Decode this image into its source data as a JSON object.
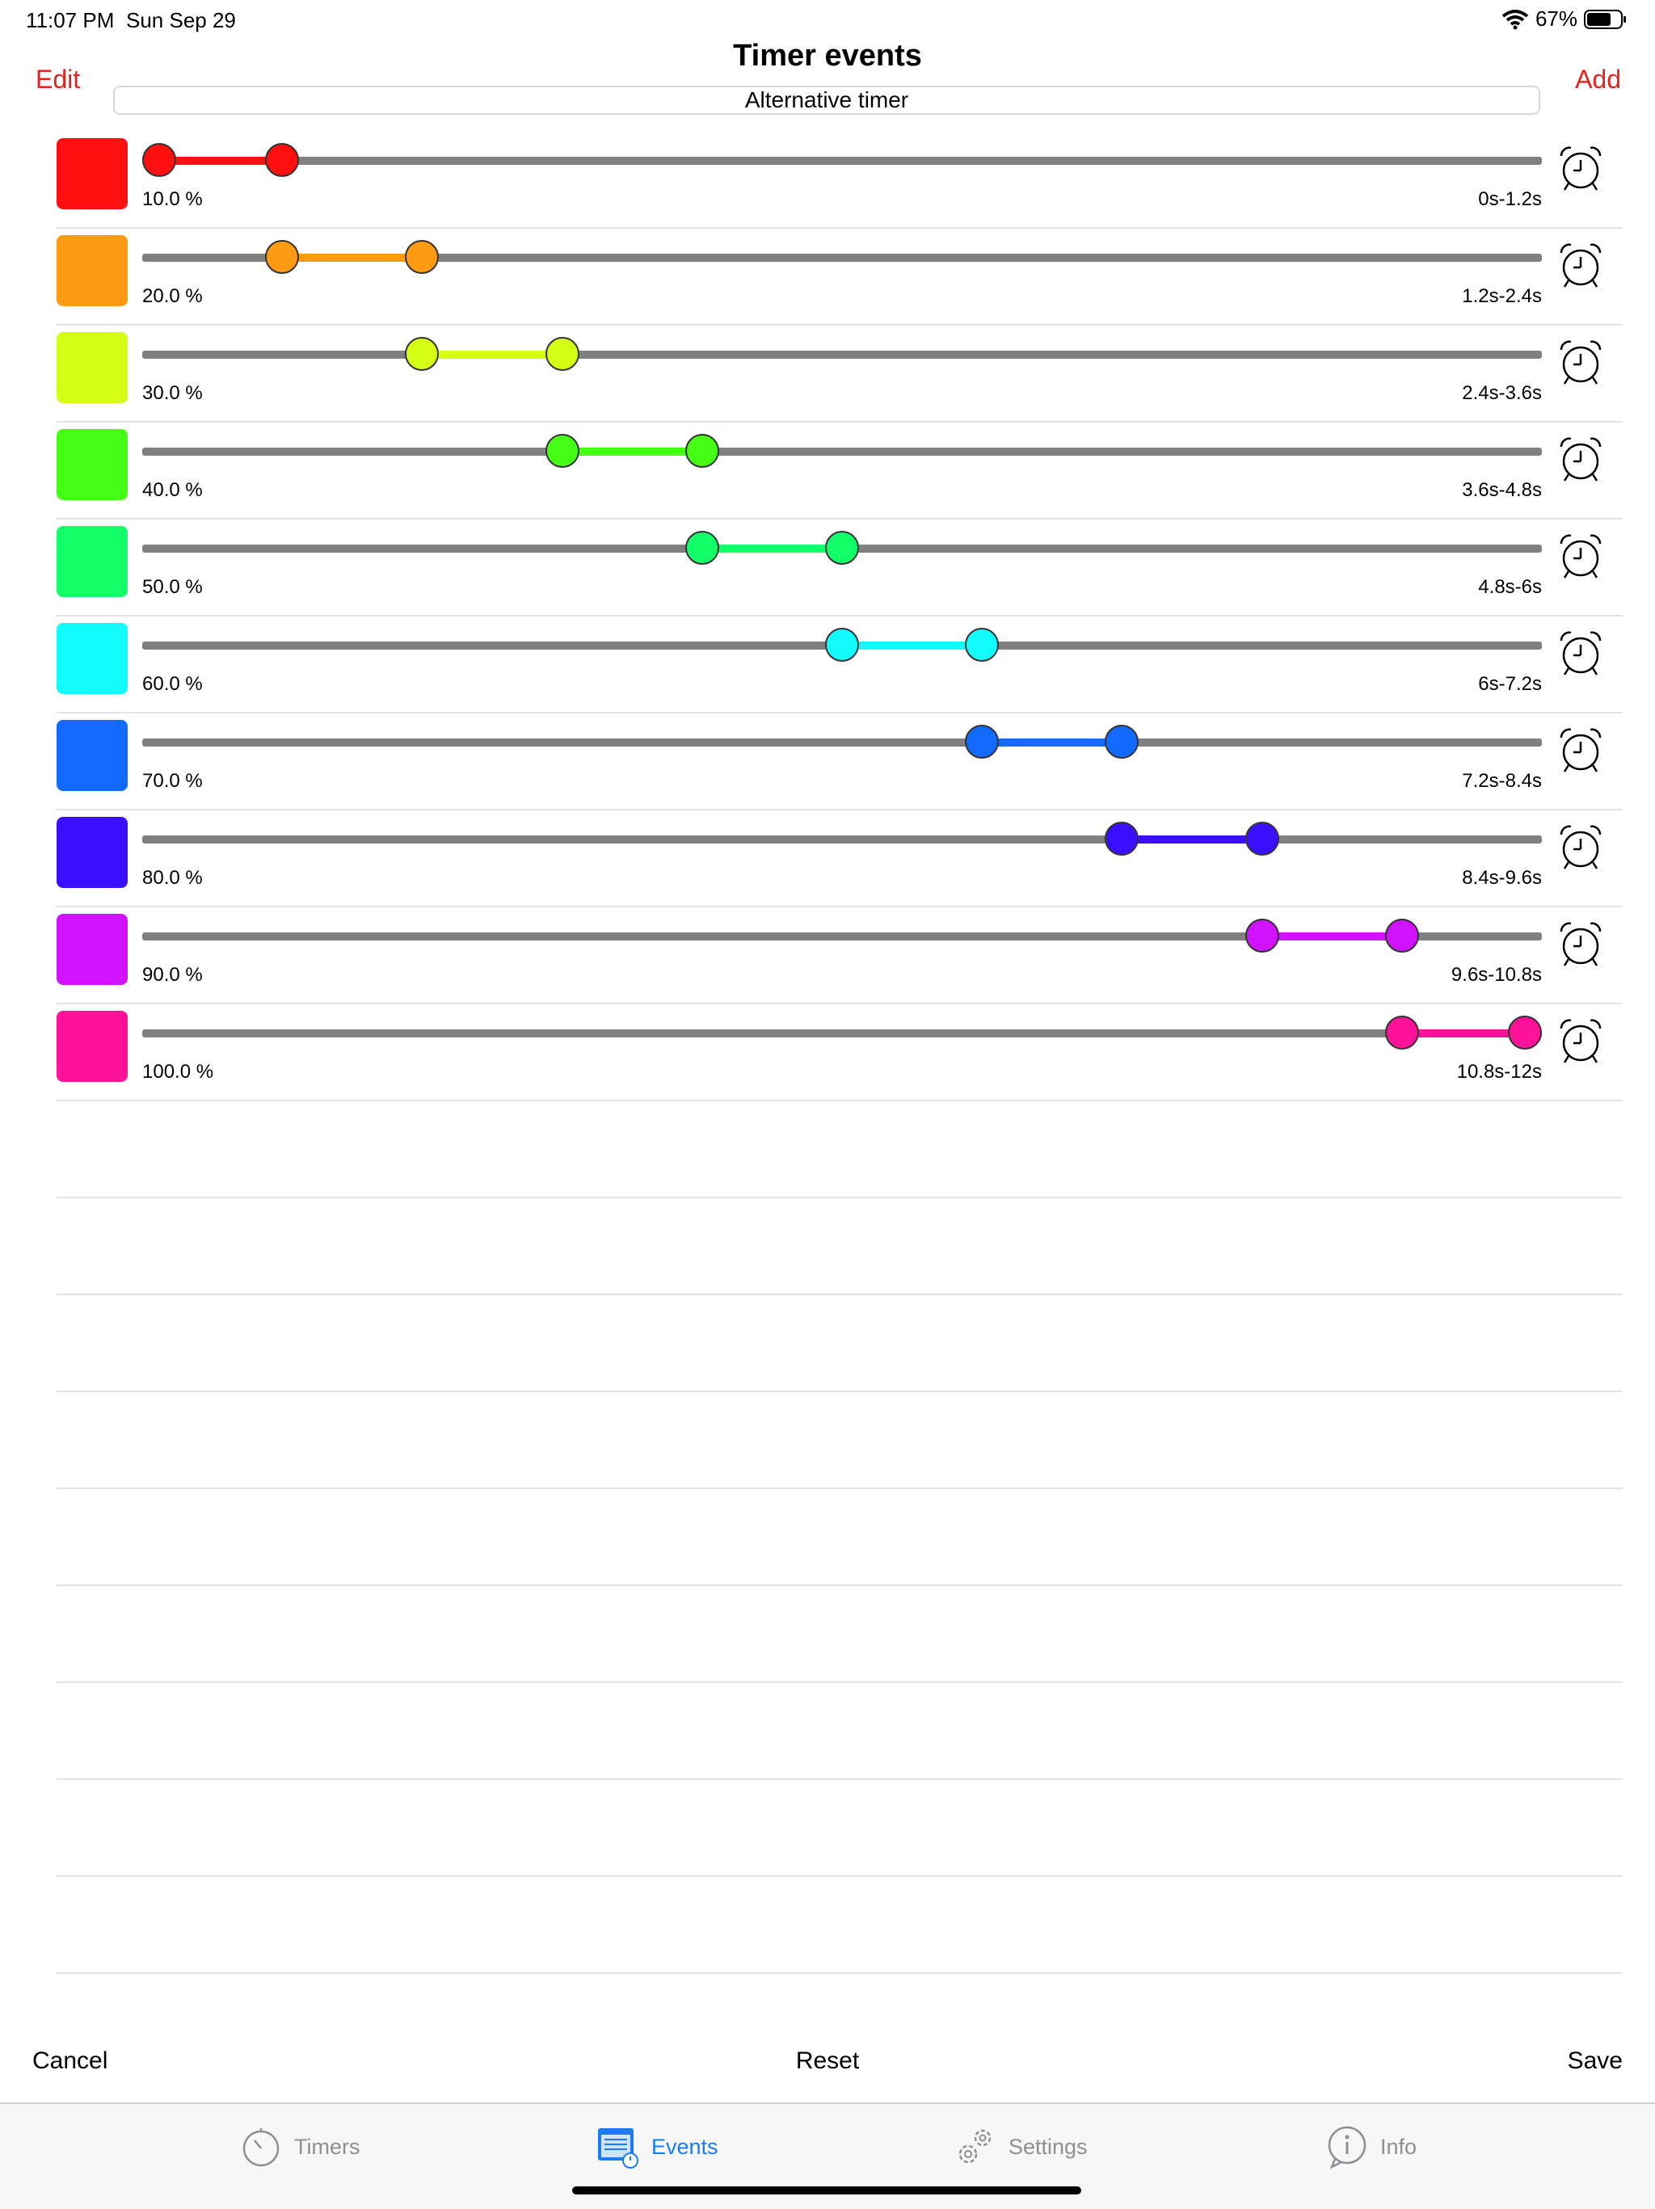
{
  "status_bar": {
    "time": "11:07 PM",
    "date": "Sun Sep 29",
    "battery": "67%"
  },
  "nav": {
    "edit": "Edit",
    "title": "Timer events",
    "add": "Add",
    "subtitle": "Alternative timer"
  },
  "events": [
    {
      "color": "#ff0f0f",
      "percent": "10.0 %",
      "range": "0s-1.2s",
      "start": 0.0,
      "end": 0.1
    },
    {
      "color": "#ff9a12",
      "percent": "20.0 %",
      "range": "1.2s-2.4s",
      "start": 0.1,
      "end": 0.2
    },
    {
      "color": "#d4ff14",
      "percent": "30.0 %",
      "range": "2.4s-3.6s",
      "start": 0.2,
      "end": 0.3
    },
    {
      "color": "#45ff14",
      "percent": "40.0 %",
      "range": "3.6s-4.8s",
      "start": 0.3,
      "end": 0.4
    },
    {
      "color": "#12ff6a",
      "percent": "50.0 %",
      "range": "4.8s-6s",
      "start": 0.4,
      "end": 0.5
    },
    {
      "color": "#12fcff",
      "percent": "60.0 %",
      "range": "6s-7.2s",
      "start": 0.5,
      "end": 0.6
    },
    {
      "color": "#126aff",
      "percent": "70.0 %",
      "range": "7.2s-8.4s",
      "start": 0.6,
      "end": 0.7
    },
    {
      "color": "#3a0fff",
      "percent": "80.0 %",
      "range": "8.4s-9.6s",
      "start": 0.7,
      "end": 0.8
    },
    {
      "color": "#d012ff",
      "percent": "90.0 %",
      "range": "9.6s-10.8s",
      "start": 0.8,
      "end": 0.9
    },
    {
      "color": "#ff129a",
      "percent": "100.0 %",
      "range": "10.8s-12s",
      "start": 0.9,
      "end": 1.0
    }
  ],
  "empty_rows": 9,
  "actions": {
    "cancel": "Cancel",
    "reset": "Reset",
    "save": "Save"
  },
  "tabs": [
    {
      "label": "Timers",
      "icon": "stopwatch-icon",
      "active": false
    },
    {
      "label": "Events",
      "icon": "events-list-icon",
      "active": true
    },
    {
      "label": "Settings",
      "icon": "gears-icon",
      "active": false
    },
    {
      "label": "Info",
      "icon": "info-icon",
      "active": false
    }
  ],
  "colors": {
    "accent_red": "#e8231f",
    "tab_active": "#1a7cf5",
    "tab_inactive": "#8e8e93"
  }
}
